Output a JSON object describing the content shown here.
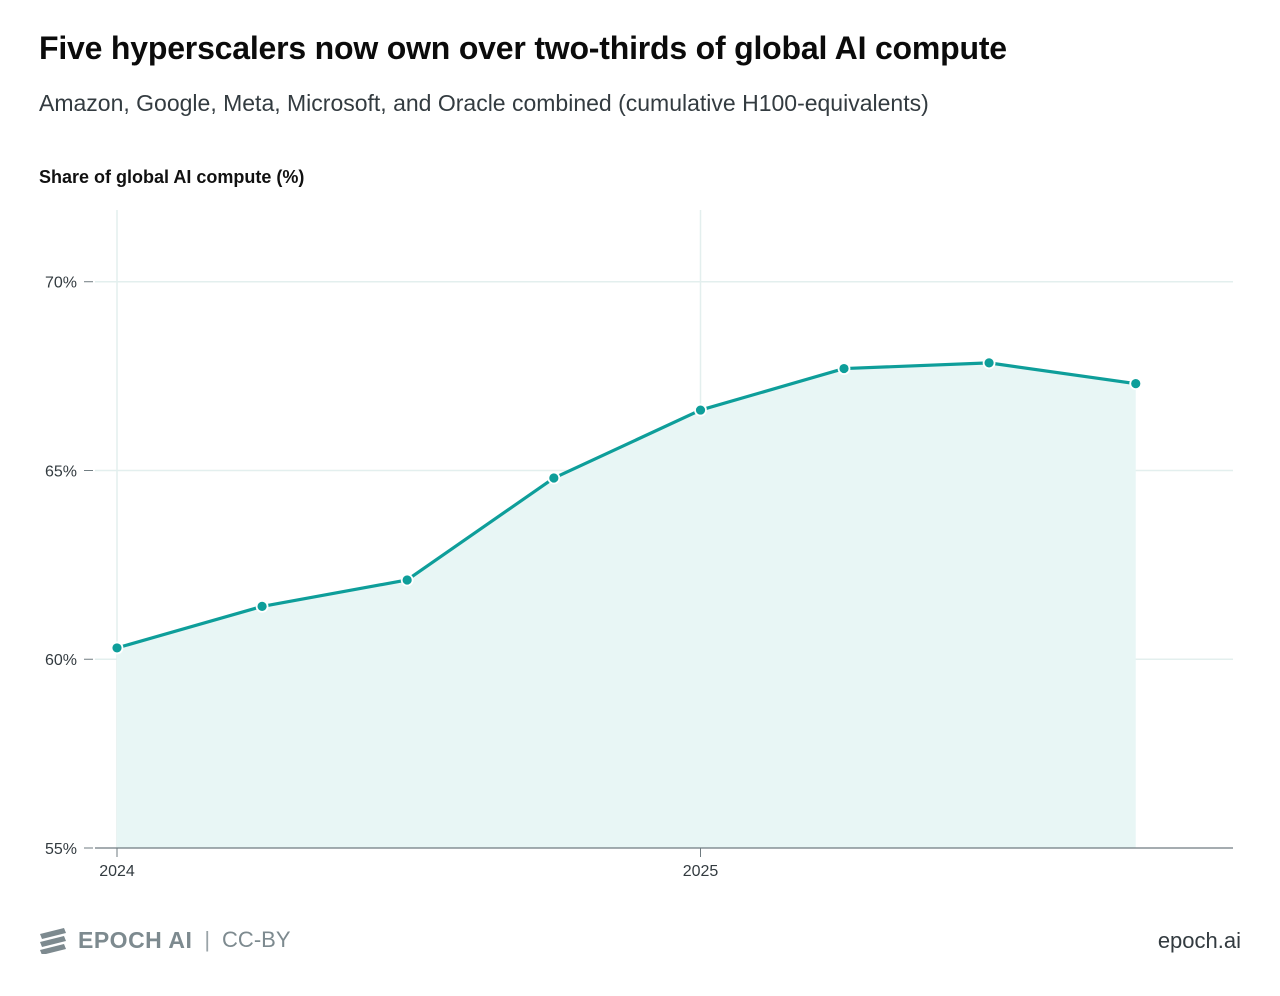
{
  "header": {
    "title": "Five hyperscalers now own over two-thirds of global AI compute",
    "subtitle": "Amazon, Google, Meta, Microsoft, and Oracle combined (cumulative H100-equivalents)"
  },
  "chart_data": {
    "type": "area",
    "title": "Five hyperscalers now own over two-thirds of global AI compute",
    "subtitle": "Amazon, Google, Meta, Microsoft, and Oracle combined (cumulative H100-equivalents)",
    "ylabel": "Share of global AI compute (%)",
    "xlabel": "",
    "x": [
      "2024-01-01",
      "2024-04-01",
      "2024-07-01",
      "2024-10-01",
      "2025-01-01",
      "2025-04-01",
      "2025-07-01",
      "2025-10-01"
    ],
    "series": [
      {
        "values": [
          60.3,
          61.4,
          62.1,
          64.8,
          66.6,
          67.7,
          67.85,
          67.3
        ]
      }
    ],
    "ylim": [
      55,
      71.9
    ],
    "xlim": [
      "2024-01-01",
      "2025-12-01"
    ],
    "yticks": [
      55,
      60,
      65,
      70
    ],
    "ytick_labels": [
      "55%",
      "60%",
      "65%",
      "70%"
    ],
    "xticks": [
      "2024-01-01",
      "2025-01-01"
    ],
    "xtick_labels": [
      "2024",
      "2025"
    ],
    "grid": true,
    "legend": "none",
    "colors": {
      "line": "#0e9e9a",
      "fill": "#e8f6f5",
      "grid": "#e3efee",
      "axis": "#6f7b80"
    }
  },
  "footer": {
    "brand": "EPOCH AI",
    "license": "CC-BY",
    "site": "epoch.ai"
  }
}
